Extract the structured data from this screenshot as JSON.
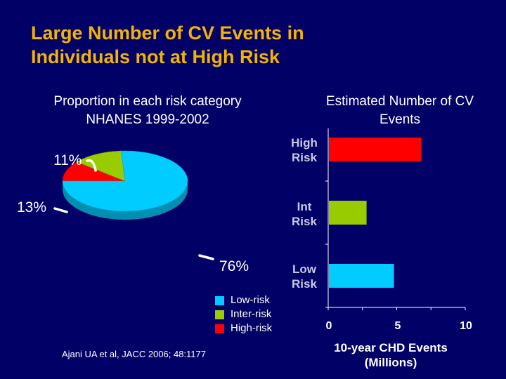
{
  "slide": {
    "title_line1": "Large Number of CV Events in",
    "title_line2": "Individuals not at High Risk",
    "source": "Ajani UA et al, JACC 2006; 48:1177",
    "background_color": "#000066",
    "title_color": "#f2b400"
  },
  "chart_data": [
    {
      "type": "pie",
      "title_line1": "Proportion in each risk category",
      "title_line2": "NHANES 1999-2002",
      "slices": [
        {
          "name": "Low-risk",
          "value": 76,
          "label": "76%",
          "color": "#00ccff"
        },
        {
          "name": "Inter-risk",
          "value": 13,
          "label": "13%",
          "color": "#99cc00"
        },
        {
          "name": "High-risk",
          "value": 11,
          "label": "11%",
          "color": "#ff0000"
        }
      ],
      "legend_position": "bottom-right"
    },
    {
      "type": "bar",
      "orientation": "horizontal",
      "title_line1": "Estimated Number of CV",
      "title_line2": "Events",
      "categories": [
        {
          "line1": "High",
          "line2": "Risk"
        },
        {
          "line1": "Int",
          "line2": "Risk"
        },
        {
          "line1": "Low",
          "line2": "Risk"
        }
      ],
      "values": [
        6.8,
        2.8,
        4.8
      ],
      "colors": [
        "#ff0000",
        "#99cc00",
        "#00ccff"
      ],
      "xlim": [
        0,
        10
      ],
      "xticks": [
        "0",
        "5",
        "10"
      ],
      "xlabel_line1": "10-year CHD Events",
      "xlabel_line2": "(Millions)",
      "grid": false
    }
  ]
}
